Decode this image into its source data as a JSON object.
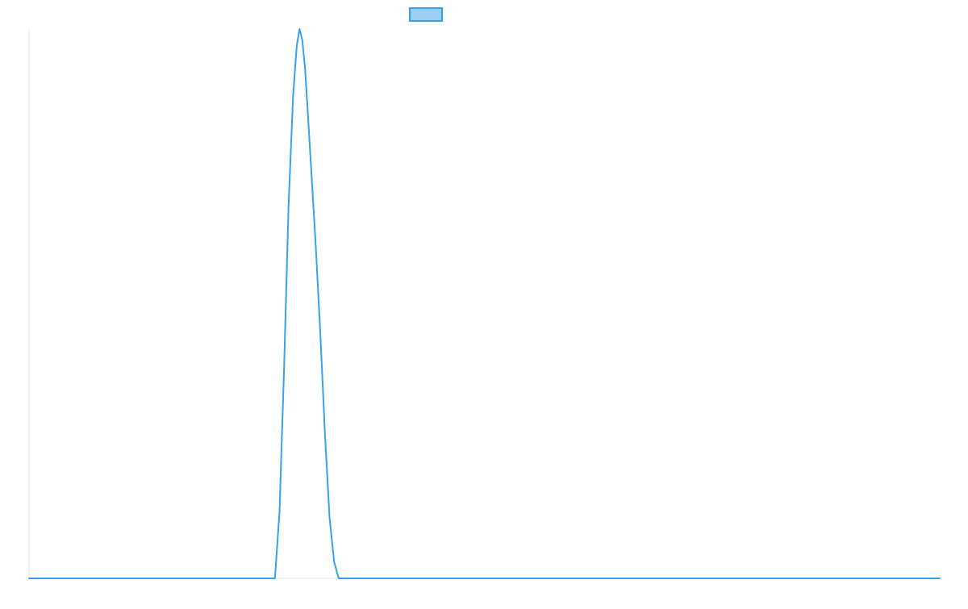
{
  "chart_data": {
    "type": "line",
    "title": "",
    "xlabel": "",
    "ylabel": "",
    "grid": false,
    "legend_position": "top-center",
    "xlim": [
      0,
      100
    ],
    "ylim": [
      0,
      100
    ],
    "series": [
      {
        "color": "#36a2eb",
        "fill_color": "#9ad0f5",
        "x": [
          0,
          1,
          2,
          3,
          4,
          5,
          6,
          7,
          8,
          9,
          10,
          11,
          12,
          13,
          14,
          15,
          16,
          17,
          18,
          19,
          20,
          21,
          22,
          23,
          24,
          25,
          26,
          27,
          27.5,
          28,
          28.5,
          29,
          29.4,
          29.7,
          30,
          30.3,
          30.6,
          31,
          31.5,
          32,
          32.5,
          33,
          33.5,
          34,
          35,
          36,
          37,
          38,
          39,
          40,
          41,
          42,
          43,
          44,
          45,
          46,
          47,
          48,
          49,
          50,
          51,
          52,
          53,
          54,
          55,
          56,
          57,
          58,
          59,
          60,
          61,
          62,
          63,
          64,
          65,
          66,
          67,
          68,
          69,
          70,
          71,
          72,
          73,
          74,
          75,
          76,
          77,
          78,
          79,
          80,
          81,
          82,
          83,
          84,
          85,
          86,
          87,
          88,
          89,
          90,
          91,
          92,
          93,
          94,
          95,
          96,
          97,
          98,
          99,
          100
        ],
        "values": [
          0,
          0,
          0,
          0,
          0,
          0,
          0,
          0,
          0,
          0,
          0,
          0,
          0,
          0,
          0,
          0,
          0,
          0,
          0,
          0,
          0,
          0,
          0,
          0,
          0,
          0,
          0,
          0,
          12,
          38,
          68,
          88,
          97,
          100,
          98,
          93,
          85,
          74,
          60,
          44,
          26,
          11,
          3,
          0,
          0,
          0,
          0,
          0,
          0,
          0,
          0,
          0,
          0,
          0,
          0,
          0,
          0,
          0,
          0,
          0,
          0,
          0,
          0,
          0,
          0,
          0,
          0,
          0,
          0,
          0,
          0,
          0,
          0,
          0,
          0,
          0,
          0,
          0,
          0,
          0,
          0,
          0,
          0,
          0,
          0,
          0,
          0,
          0,
          0,
          0,
          0,
          0,
          0,
          0,
          0,
          0,
          0,
          0,
          0,
          0,
          0,
          0,
          0,
          0,
          0,
          0,
          0,
          0,
          0,
          0
        ]
      }
    ]
  }
}
